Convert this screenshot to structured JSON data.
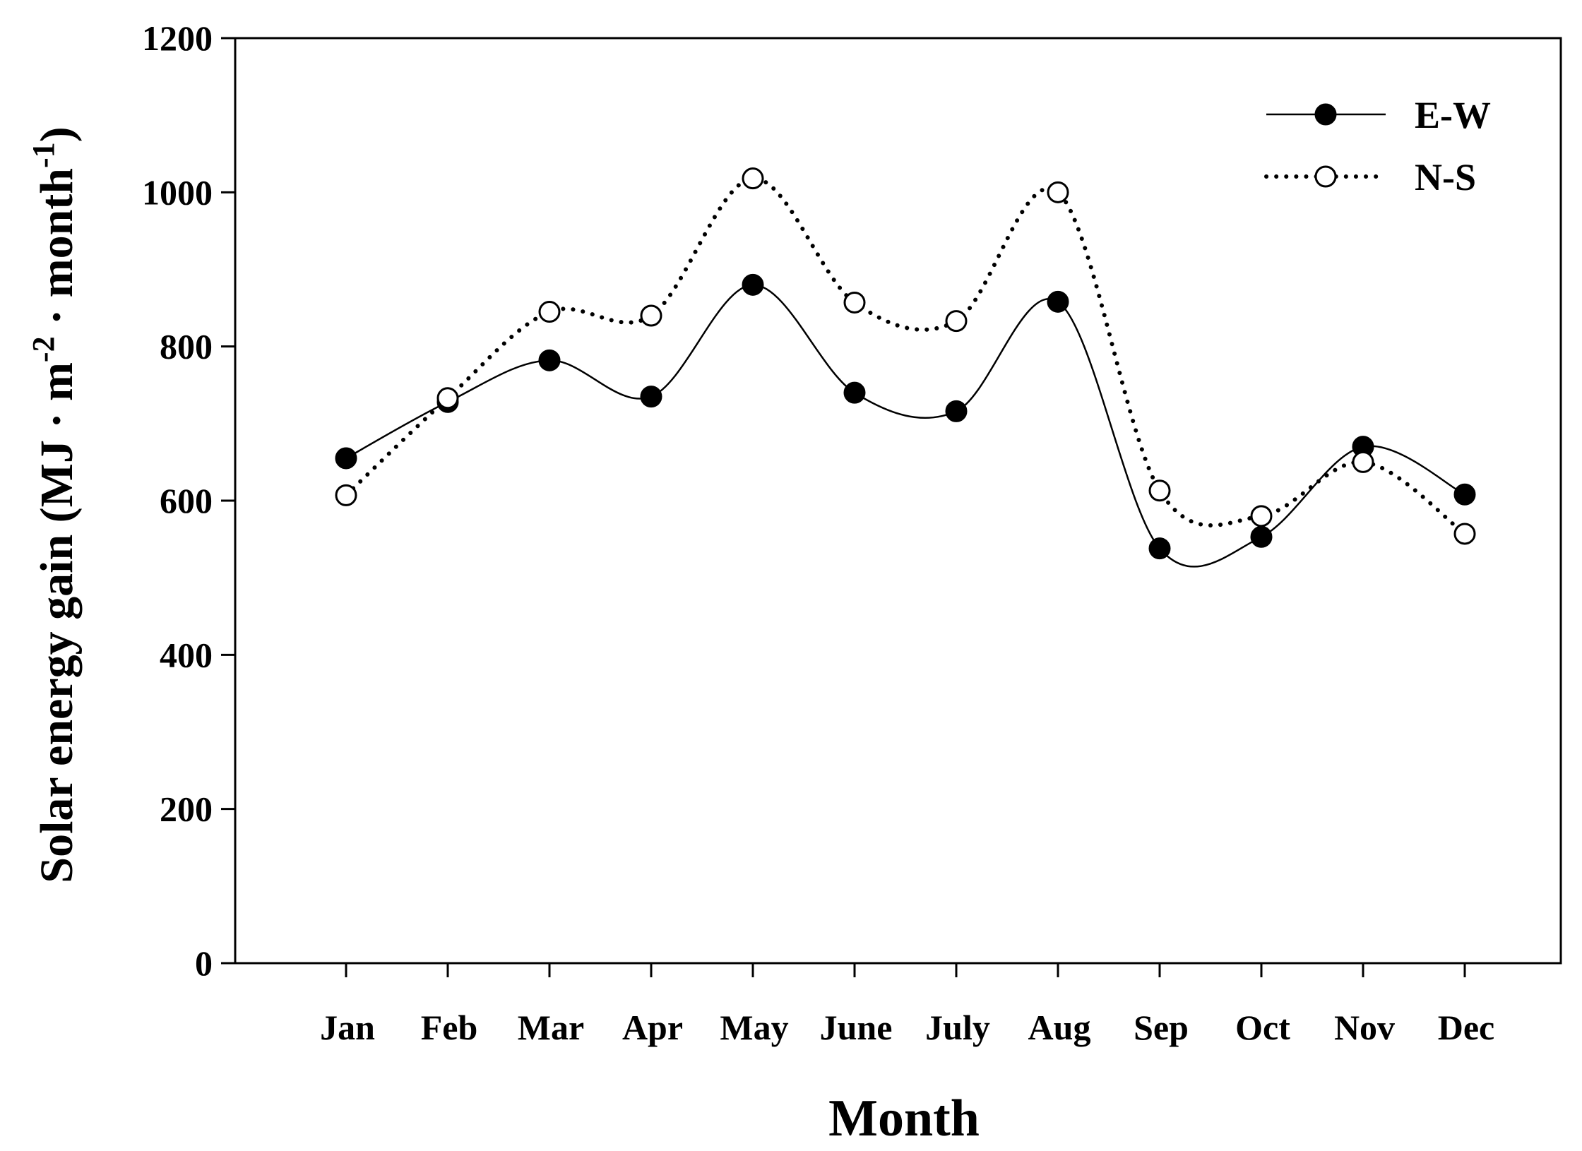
{
  "chart_data": {
    "type": "line",
    "title": "",
    "xlabel": "Month",
    "ylabel": {
      "main": "Solar energy gain (MJ · m",
      "exp1": "-2",
      "mid": " · month",
      "exp2": "-1",
      "end": ")"
    },
    "categories": [
      "Jan",
      "Feb",
      "Mar",
      "Apr",
      "May",
      "June",
      "July",
      "Aug",
      "Sep",
      "Oct",
      "Nov",
      "Dec"
    ],
    "ylim": [
      0,
      1200
    ],
    "yticks": [
      0,
      200,
      400,
      600,
      800,
      1000,
      1200
    ],
    "grid": false,
    "legend_position": "top-right",
    "series": [
      {
        "name": "E-W",
        "style": "solid",
        "marker": "filled-circle",
        "color": "#000000",
        "values": [
          655,
          728,
          782,
          735,
          880,
          740,
          716,
          858,
          538,
          553,
          670,
          608
        ]
      },
      {
        "name": "N-S",
        "style": "dotted",
        "marker": "open-circle",
        "color": "#000000",
        "values": [
          607,
          733,
          845,
          840,
          1018,
          857,
          833,
          1000,
          613,
          580,
          650,
          557
        ]
      }
    ]
  }
}
